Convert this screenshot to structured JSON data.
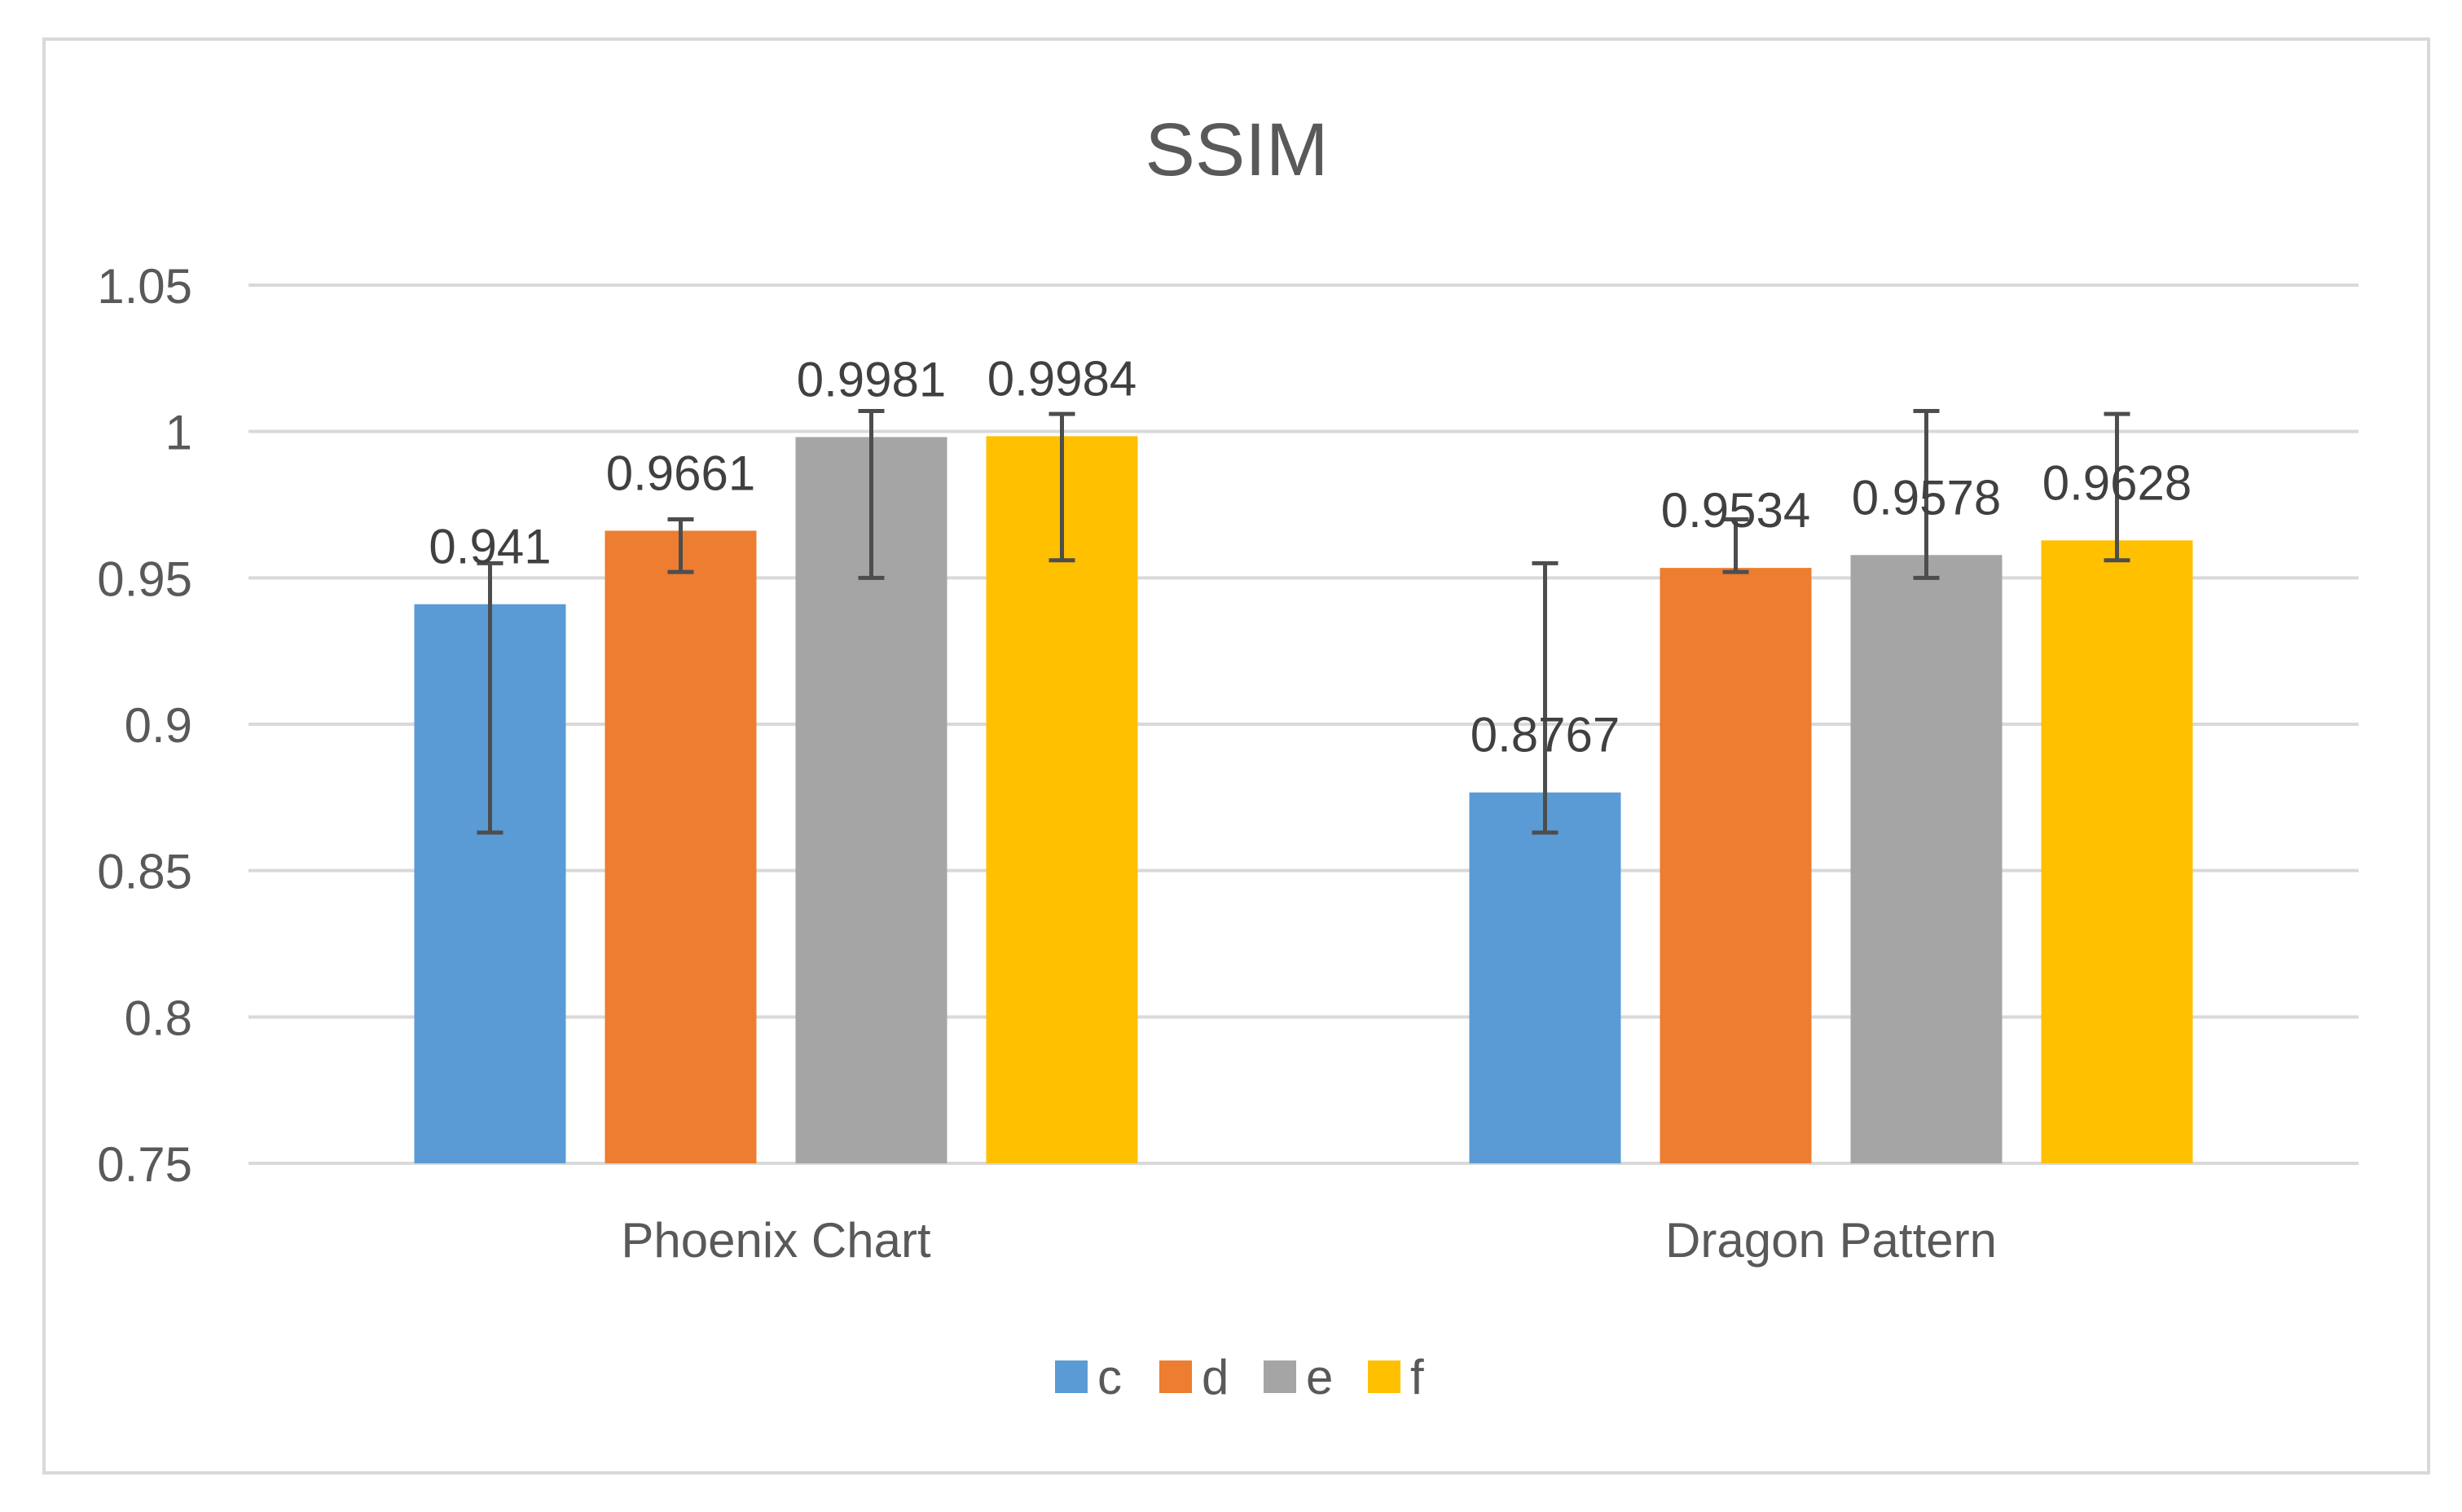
{
  "chart_data": {
    "type": "bar",
    "title": "SSIM",
    "xlabel": "",
    "ylabel": "",
    "categories": [
      "Phoenix Chart",
      "Dragon Pattern"
    ],
    "ylim": [
      0.75,
      1.05
    ],
    "yticks": [
      0.75,
      0.8,
      0.85,
      0.9,
      0.95,
      1,
      1.05
    ],
    "ytick_labels": [
      "0.75",
      "0.8",
      "0.85",
      "0.9",
      "0.95",
      "1",
      "1.05"
    ],
    "grid": true,
    "legend_position": "bottom",
    "series": [
      {
        "name": "c",
        "color": "#5B9BD5",
        "values": [
          0.941,
          0.8767
        ],
        "labels": [
          "0.941",
          "0.8767"
        ],
        "error_low": [
          0.863,
          0.863
        ],
        "error_high": [
          0.955,
          0.955
        ]
      },
      {
        "name": "d",
        "color": "#ED7D31",
        "values": [
          0.9661,
          0.9534
        ],
        "labels": [
          "0.9661",
          "0.9534"
        ],
        "error_low": [
          0.952,
          0.952
        ],
        "error_high": [
          0.97,
          0.97
        ]
      },
      {
        "name": "e",
        "color": "#A5A5A5",
        "values": [
          0.9981,
          0.9578
        ],
        "labels": [
          "0.9981",
          "0.9578"
        ],
        "error_low": [
          0.95,
          0.95
        ],
        "error_high": [
          1.007,
          1.007
        ]
      },
      {
        "name": "f",
        "color": "#FFC000",
        "values": [
          0.9984,
          0.9628
        ],
        "labels": [
          "0.9984",
          "0.9628"
        ],
        "error_low": [
          0.956,
          0.956
        ],
        "error_high": [
          1.006,
          1.006
        ]
      }
    ]
  }
}
